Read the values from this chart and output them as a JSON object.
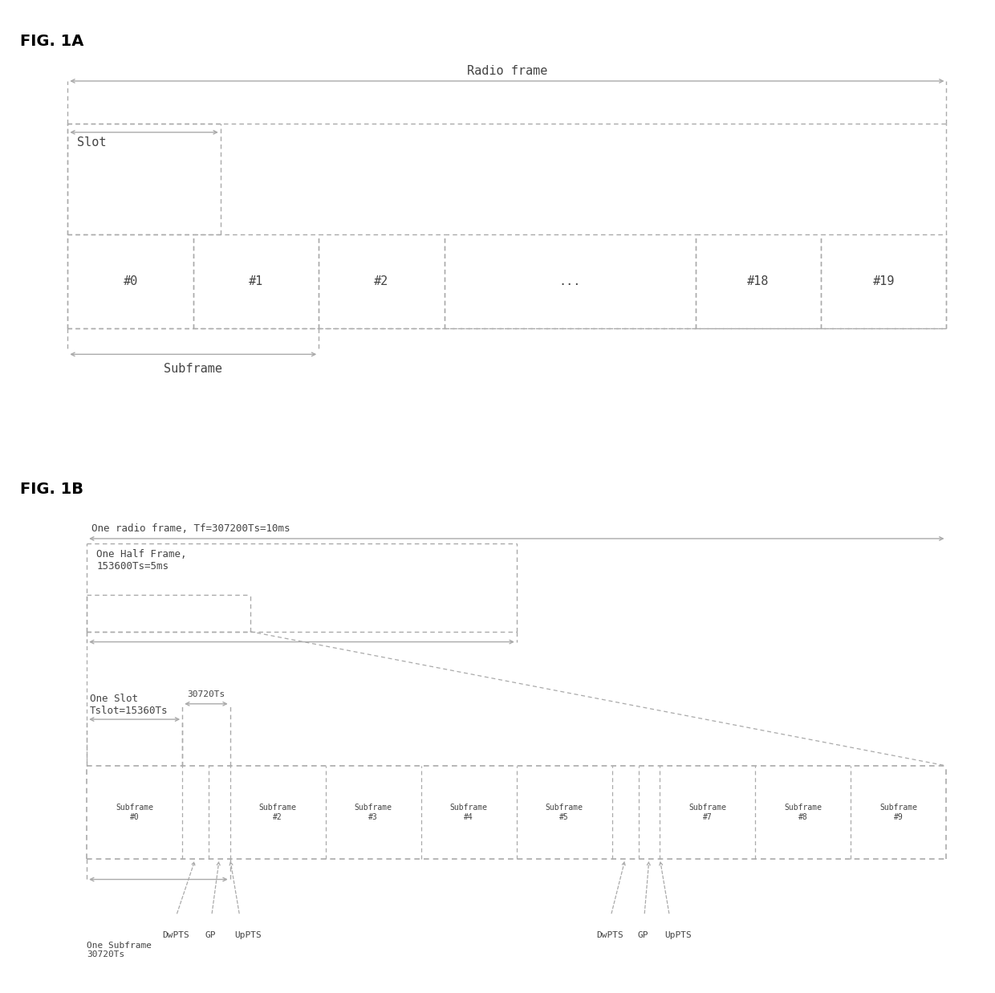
{
  "fig1a": {
    "title": "FIG. 1A",
    "radio_frame_label": "Radio frame",
    "slot_label": "Slot",
    "subframe_label": "Subframe",
    "slots": [
      "#0",
      "#1",
      "#2",
      "...",
      "#18",
      "#19"
    ],
    "slot_widths": [
      1,
      1,
      1,
      2,
      1,
      1
    ]
  },
  "fig1b": {
    "title": "FIG. 1B",
    "radio_frame_label": "One radio frame, Tf=307200Ts=10ms",
    "half_frame_label": "One Half Frame,\n153600Ts=5ms",
    "slot_label": "One Slot\nTslot=15360Ts",
    "slot30720_label": "30720Ts",
    "subframe_label": "One Subframe\n30720Ts",
    "subframes": [
      "Subframe\n#0",
      "",
      "",
      "Subframe\n#2",
      "Subframe\n#3",
      "Subframe\n#4",
      "Subframe\n#5",
      "",
      "",
      "Subframe\n#7",
      "Subframe\n#8",
      "Subframe\n#9"
    ],
    "subframe_widths": [
      2.0,
      0.55,
      0.45,
      2.0,
      2.0,
      2.0,
      2.0,
      0.55,
      0.45,
      2.0,
      2.0,
      2.0
    ]
  },
  "lc": "#aaaaaa",
  "tc": "#444444",
  "font_size_title": 14,
  "font_size_label": 11,
  "font_size_small": 9,
  "font_size_tiny": 8
}
